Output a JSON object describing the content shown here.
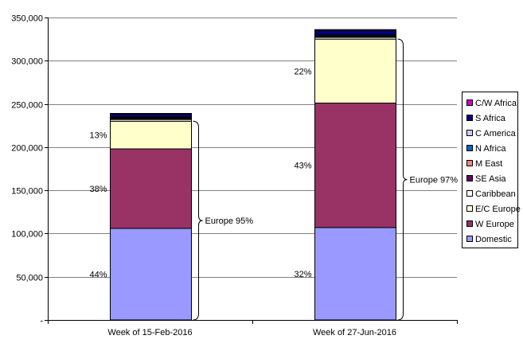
{
  "chart_data": {
    "type": "bar",
    "stacked": true,
    "categories": [
      "Week of 15-Feb-2016",
      "Week of 27-Jun-2016"
    ],
    "ylim": [
      0,
      350000
    ],
    "yticks": [
      "-",
      "50,000",
      "100,000",
      "150,000",
      "200,000",
      "250,000",
      "300,000",
      "350,000"
    ],
    "grid": true,
    "legend_position": "right",
    "series": [
      {
        "name": "Domestic",
        "color": "#9999ff",
        "values": [
          106000,
          107000
        ]
      },
      {
        "name": "W Europe",
        "color": "#993366",
        "values": [
          92000,
          144000
        ]
      },
      {
        "name": "E/C Europe",
        "color": "#ffffcc",
        "values": [
          32000,
          74000
        ]
      },
      {
        "name": "Caribbean",
        "color": "#ffffff",
        "values": [
          2000,
          2000
        ]
      },
      {
        "name": "SE Asia",
        "color": "#660066",
        "values": [
          1000,
          1000
        ]
      },
      {
        "name": "M East",
        "color": "#ff8080",
        "values": [
          500,
          500
        ]
      },
      {
        "name": "N Africa",
        "color": "#0066cc",
        "values": [
          500,
          500
        ]
      },
      {
        "name": "C America",
        "color": "#ccccff",
        "values": [
          1000,
          1000
        ]
      },
      {
        "name": "S Africa",
        "color": "#000080",
        "values": [
          3000,
          5000
        ]
      },
      {
        "name": "C/W Africa",
        "color": "#cc00cc",
        "values": [
          1000,
          1000
        ]
      }
    ],
    "annotations": [
      {
        "bar": 0,
        "labels": [
          "44%",
          "38%",
          "13%"
        ],
        "brace_label": "Europe 95%"
      },
      {
        "bar": 1,
        "labels": [
          "32%",
          "43%",
          "22%"
        ],
        "brace_label": "Europe 97%"
      }
    ]
  }
}
